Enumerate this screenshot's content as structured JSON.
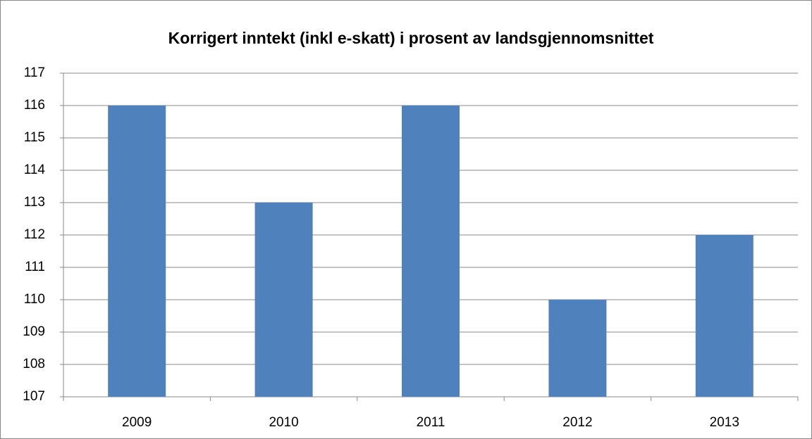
{
  "chart_data": {
    "type": "bar",
    "title": "Korrigert inntekt (inkl e-skatt) i prosent av landsgjennomsnittet",
    "categories": [
      "2009",
      "2010",
      "2011",
      "2012",
      "2013"
    ],
    "values": [
      116,
      113,
      116,
      110,
      112
    ],
    "color": "#4f81bd",
    "ylim": [
      107,
      117
    ],
    "yticks": [
      107,
      108,
      109,
      110,
      111,
      112,
      113,
      114,
      115,
      116,
      117
    ],
    "grid": true
  }
}
